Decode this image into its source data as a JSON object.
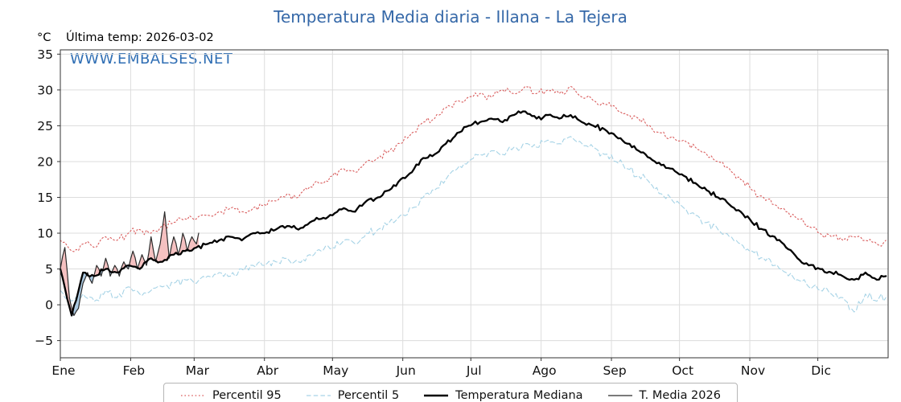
{
  "legend": {
    "items": [
      {
        "label": "Percentil 95"
      },
      {
        "label": "Percentil 5"
      },
      {
        "label": "Temperatura Mediana"
      },
      {
        "label": "T. Media 2026"
      }
    ]
  },
  "chart_data": {
    "type": "line",
    "title": "Temperatura Media diaria - Illana - La Tejera",
    "unit_label": "°C",
    "last_temp_label": "Última temp: 2026-03-02",
    "watermark": "WWW.EMBALSES.NET",
    "xlim_days": [
      0,
      365
    ],
    "ylim": [
      -7.4,
      35.6
    ],
    "yticks": [
      -5,
      0,
      5,
      10,
      15,
      20,
      25,
      30,
      35
    ],
    "xticks": [
      {
        "label": "Ene",
        "day": 0
      },
      {
        "label": "Feb",
        "day": 31
      },
      {
        "label": "Mar",
        "day": 59
      },
      {
        "label": "Abr",
        "day": 90
      },
      {
        "label": "May",
        "day": 120
      },
      {
        "label": "Jun",
        "day": 151
      },
      {
        "label": "Jul",
        "day": 181
      },
      {
        "label": "Ago",
        "day": 212
      },
      {
        "label": "Sep",
        "day": 243
      },
      {
        "label": "Oct",
        "day": 273
      },
      {
        "label": "Nov",
        "day": 304
      },
      {
        "label": "Dic",
        "day": 334
      }
    ],
    "colors": {
      "title": "#3568a8",
      "watermark": "#2f6eb4",
      "grid": "#dcdcdc",
      "axis": "#333333",
      "tick_label": "#111111",
      "fill_above": "#f3b6b6",
      "fill_below": "#9cc0dc",
      "legend_border": "#b5b5b5"
    },
    "series": [
      {
        "name": "Percentil 95",
        "key": "p95",
        "color": "#d95c5c",
        "style": "dotted",
        "width": 1.1,
        "noise_amp": 0.7,
        "x": [
          0,
          5,
          10,
          15,
          20,
          25,
          30,
          35,
          40,
          45,
          50,
          55,
          60,
          65,
          70,
          75,
          80,
          85,
          90,
          95,
          100,
          105,
          110,
          115,
          120,
          125,
          130,
          135,
          140,
          145,
          150,
          155,
          160,
          165,
          170,
          175,
          180,
          185,
          190,
          195,
          200,
          205,
          210,
          215,
          220,
          225,
          230,
          235,
          240,
          245,
          250,
          255,
          260,
          265,
          270,
          275,
          280,
          285,
          290,
          295,
          300,
          305,
          310,
          315,
          320,
          325,
          330,
          335,
          340,
          345,
          350,
          355,
          360,
          364
        ],
        "values": [
          9,
          7.5,
          8.5,
          8,
          9.5,
          9,
          10,
          10.5,
          10,
          11,
          11.5,
          12,
          12,
          12.5,
          13,
          13.5,
          13,
          13.5,
          14,
          14.5,
          15.5,
          15,
          16.5,
          17,
          18,
          19,
          18.5,
          20,
          20.5,
          21.5,
          22.5,
          24,
          25.5,
          26,
          27.5,
          28.5,
          29,
          29.5,
          29,
          30,
          29.5,
          30.5,
          29.5,
          30,
          29.5,
          30.5,
          29,
          28.5,
          28,
          27.5,
          26.5,
          26,
          25,
          24,
          23.5,
          23,
          22,
          21,
          20,
          19,
          17.5,
          16,
          15,
          14,
          13,
          12,
          11,
          10,
          9.5,
          9,
          9.5,
          9,
          8.5,
          9
        ]
      },
      {
        "name": "Percentil 5",
        "key": "p5",
        "color": "#a6d3e6",
        "style": "dashed",
        "width": 1.1,
        "noise_amp": 0.8,
        "x": [
          0,
          5,
          10,
          15,
          20,
          25,
          30,
          35,
          40,
          45,
          50,
          55,
          60,
          65,
          70,
          75,
          80,
          85,
          90,
          95,
          100,
          105,
          110,
          115,
          120,
          125,
          130,
          135,
          140,
          145,
          150,
          155,
          160,
          165,
          170,
          175,
          180,
          185,
          190,
          195,
          200,
          205,
          210,
          215,
          220,
          225,
          230,
          235,
          240,
          245,
          250,
          255,
          260,
          265,
          270,
          275,
          280,
          285,
          290,
          295,
          300,
          305,
          310,
          315,
          320,
          325,
          330,
          335,
          340,
          345,
          350,
          355,
          360,
          364
        ],
        "values": [
          2,
          0.5,
          1.5,
          0.5,
          2,
          1,
          2.5,
          1.5,
          2,
          2.5,
          3,
          3.5,
          3,
          4,
          4.5,
          4,
          5,
          5.5,
          5.5,
          6,
          6.5,
          6,
          7,
          7.5,
          8,
          9,
          8.5,
          10,
          10.5,
          11.5,
          12.5,
          13.5,
          15,
          16,
          17.5,
          19,
          20,
          21,
          21.5,
          21,
          22,
          22.5,
          22,
          23,
          22.5,
          23.5,
          22.5,
          22,
          21,
          20,
          19,
          18,
          17,
          15.5,
          14.5,
          13.5,
          12.5,
          11.5,
          10.5,
          9.5,
          8.5,
          7.5,
          6.5,
          5.5,
          4.5,
          3.5,
          2.5,
          2,
          1.5,
          1,
          -1,
          1.5,
          0.5,
          1
        ]
      },
      {
        "name": "Temperatura Mediana",
        "key": "median",
        "color": "#000000",
        "style": "solid",
        "width": 2.3,
        "noise_amp": 0.45,
        "x": [
          0,
          5,
          10,
          15,
          20,
          25,
          30,
          35,
          40,
          45,
          50,
          55,
          60,
          65,
          70,
          75,
          80,
          85,
          90,
          95,
          100,
          105,
          110,
          115,
          120,
          125,
          130,
          135,
          140,
          145,
          150,
          155,
          160,
          165,
          170,
          175,
          180,
          185,
          190,
          195,
          200,
          205,
          210,
          215,
          220,
          225,
          230,
          235,
          240,
          245,
          250,
          255,
          260,
          265,
          270,
          275,
          280,
          285,
          290,
          295,
          300,
          305,
          310,
          315,
          320,
          325,
          330,
          335,
          340,
          345,
          350,
          355,
          360,
          364
        ],
        "values": [
          5,
          -1.5,
          4.5,
          4,
          5,
          4.5,
          5.5,
          5,
          6.5,
          6,
          7,
          7.5,
          8,
          8.5,
          9,
          9.5,
          9,
          10,
          10,
          10.5,
          11,
          10.5,
          11.5,
          12,
          12.5,
          13.5,
          13,
          14.5,
          15,
          16,
          17.5,
          18.5,
          20.5,
          21,
          22.5,
          24,
          25,
          25.5,
          26,
          25.5,
          26.5,
          27,
          26,
          26.5,
          26,
          26.5,
          25.5,
          25,
          24.5,
          23.5,
          22.5,
          21.5,
          20.5,
          19.5,
          19,
          18,
          17,
          16,
          15,
          14,
          13,
          11.5,
          10.5,
          9.5,
          8,
          6.5,
          5.5,
          5,
          4.5,
          4,
          3.5,
          4.5,
          3.5,
          4
        ]
      },
      {
        "name": "T. Media 2026",
        "key": "t2026",
        "color": "#2b2b2b",
        "style": "solid",
        "width": 1.2,
        "noise_amp": 0.35,
        "x": [
          0,
          2,
          4,
          6,
          8,
          10,
          12,
          14,
          16,
          18,
          20,
          22,
          24,
          26,
          28,
          30,
          32,
          34,
          36,
          38,
          40,
          42,
          44,
          46,
          48,
          50,
          52,
          54,
          56,
          58,
          60,
          61
        ],
        "values": [
          5,
          8,
          1,
          -1.5,
          -0.5,
          3,
          4.5,
          3,
          5.5,
          4,
          6.5,
          4,
          5.5,
          4,
          6,
          5,
          7.5,
          5,
          7,
          5.5,
          9.5,
          6,
          8.5,
          13,
          6.5,
          9.5,
          7,
          10,
          7.5,
          9.5,
          8.5,
          10
        ]
      }
    ]
  }
}
